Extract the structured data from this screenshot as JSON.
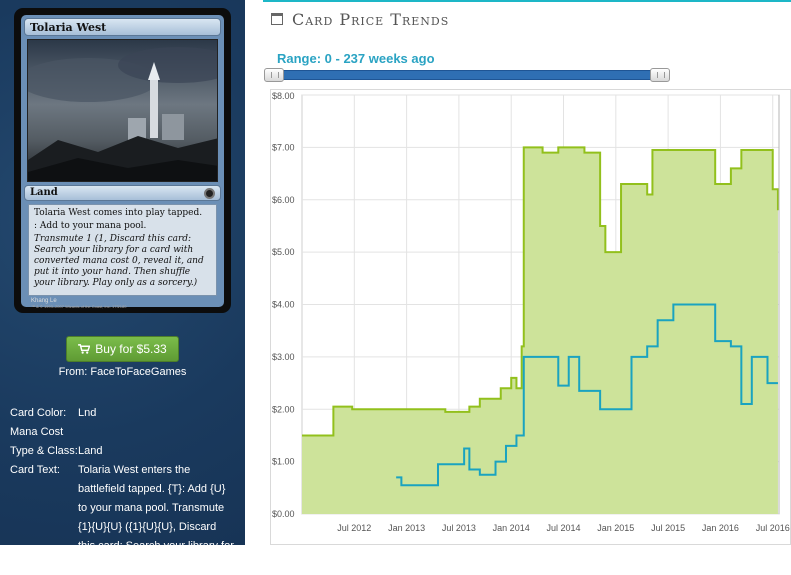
{
  "card": {
    "name": "Tolaria West",
    "type_line": "Land",
    "rules": [
      "Tolaria West comes into play tapped.",
      ": Add  to your mana pool."
    ],
    "transmute_text": "Transmute 1 (1, Discard this card: Search your library for a card with converted mana cost 0, reveal it, and put it into your hand. Then shuffle your library. Play only as a sorcery.)",
    "artist": "Khang Le",
    "copyright": "™ & © 1993–2007 Wizards of the Coast, Inc. 173/180"
  },
  "buy": {
    "label": "Buy for $5.33",
    "from": "From: FaceToFaceGames"
  },
  "info": [
    {
      "key": "Card Color:",
      "value": "Lnd"
    },
    {
      "key": "Mana Cost",
      "value": ""
    },
    {
      "key": "Type & Class:",
      "value": "Land"
    },
    {
      "key": "Card Text:",
      "value": "Tolaria West enters the battlefield tapped. {T}: Add {U} to your mana pool. Transmute {1}{U}{U} ({1}{U}{U}, Discard this card: Search your library for a"
    }
  ],
  "section": {
    "title": "Card Price Trends"
  },
  "range": {
    "label": "Range: 0 - 237 weeks ago"
  },
  "colors": {
    "accent": "#1db7c7",
    "slider": "#2f6fb3",
    "buy_button": "#6aab3e",
    "sidebar": "#1c3d62",
    "series_retail": "#92c01c",
    "series_fill": "#cde39a",
    "series_buylist": "#1aa3c0"
  },
  "chart_data": {
    "type": "area",
    "x_ticks": [
      "Jul 2012",
      "Jan 2013",
      "Jul 2013",
      "Jan 2014",
      "Jul 2014",
      "Jan 2015",
      "Jul 2015",
      "Jan 2016",
      "Jul 2016"
    ],
    "y_ticks": [
      "$0.00",
      "$1.00",
      "$2.00",
      "$3.00",
      "$4.00",
      "$5.00",
      "$6.00",
      "$7.00",
      "$8.00"
    ],
    "ylim": [
      0,
      8
    ],
    "grid": true,
    "series": [
      {
        "points": [
          [
            2012.0,
            1.5
          ],
          [
            2012.28,
            1.5
          ],
          [
            2012.3,
            2.05
          ],
          [
            2012.45,
            2.05
          ],
          [
            2012.48,
            2.0
          ],
          [
            2013.35,
            2.0
          ],
          [
            2013.37,
            1.95
          ],
          [
            2013.5,
            1.95
          ],
          [
            2013.6,
            2.05
          ],
          [
            2013.7,
            2.2
          ],
          [
            2013.9,
            2.4
          ],
          [
            2014.0,
            2.6
          ],
          [
            2014.05,
            2.4
          ],
          [
            2014.1,
            3.2
          ],
          [
            2014.12,
            7.0
          ],
          [
            2014.3,
            6.9
          ],
          [
            2014.45,
            7.0
          ],
          [
            2014.7,
            6.9
          ],
          [
            2014.85,
            5.5
          ],
          [
            2014.9,
            5.0
          ],
          [
            2015.0,
            5.0
          ],
          [
            2015.05,
            6.3
          ],
          [
            2015.3,
            6.1
          ],
          [
            2015.35,
            6.95
          ],
          [
            2015.9,
            6.95
          ],
          [
            2015.95,
            6.3
          ],
          [
            2016.1,
            6.6
          ],
          [
            2016.2,
            6.95
          ],
          [
            2016.45,
            6.95
          ],
          [
            2016.5,
            6.2
          ],
          [
            2016.55,
            5.8
          ]
        ],
        "color": "#92c01c",
        "fill": "#cde39a"
      },
      {
        "points": [
          [
            2012.9,
            0.7
          ],
          [
            2012.95,
            0.55
          ],
          [
            2013.25,
            0.55
          ],
          [
            2013.3,
            0.95
          ],
          [
            2013.45,
            0.95
          ],
          [
            2013.55,
            1.25
          ],
          [
            2013.6,
            0.85
          ],
          [
            2013.7,
            0.75
          ],
          [
            2013.85,
            1.0
          ],
          [
            2013.95,
            1.3
          ],
          [
            2014.05,
            1.5
          ],
          [
            2014.1,
            1.5
          ],
          [
            2014.12,
            3.0
          ],
          [
            2014.35,
            3.0
          ],
          [
            2014.45,
            2.45
          ],
          [
            2014.55,
            3.0
          ],
          [
            2014.65,
            2.35
          ],
          [
            2014.75,
            2.35
          ],
          [
            2014.85,
            2.0
          ],
          [
            2015.05,
            2.0
          ],
          [
            2015.15,
            3.0
          ],
          [
            2015.3,
            3.2
          ],
          [
            2015.4,
            3.7
          ],
          [
            2015.55,
            4.0
          ],
          [
            2015.85,
            4.0
          ],
          [
            2015.95,
            3.3
          ],
          [
            2016.1,
            3.2
          ],
          [
            2016.2,
            2.1
          ],
          [
            2016.3,
            3.0
          ],
          [
            2016.4,
            3.0
          ],
          [
            2016.45,
            2.5
          ],
          [
            2016.55,
            2.5
          ]
        ],
        "color": "#1aa3c0"
      }
    ]
  }
}
